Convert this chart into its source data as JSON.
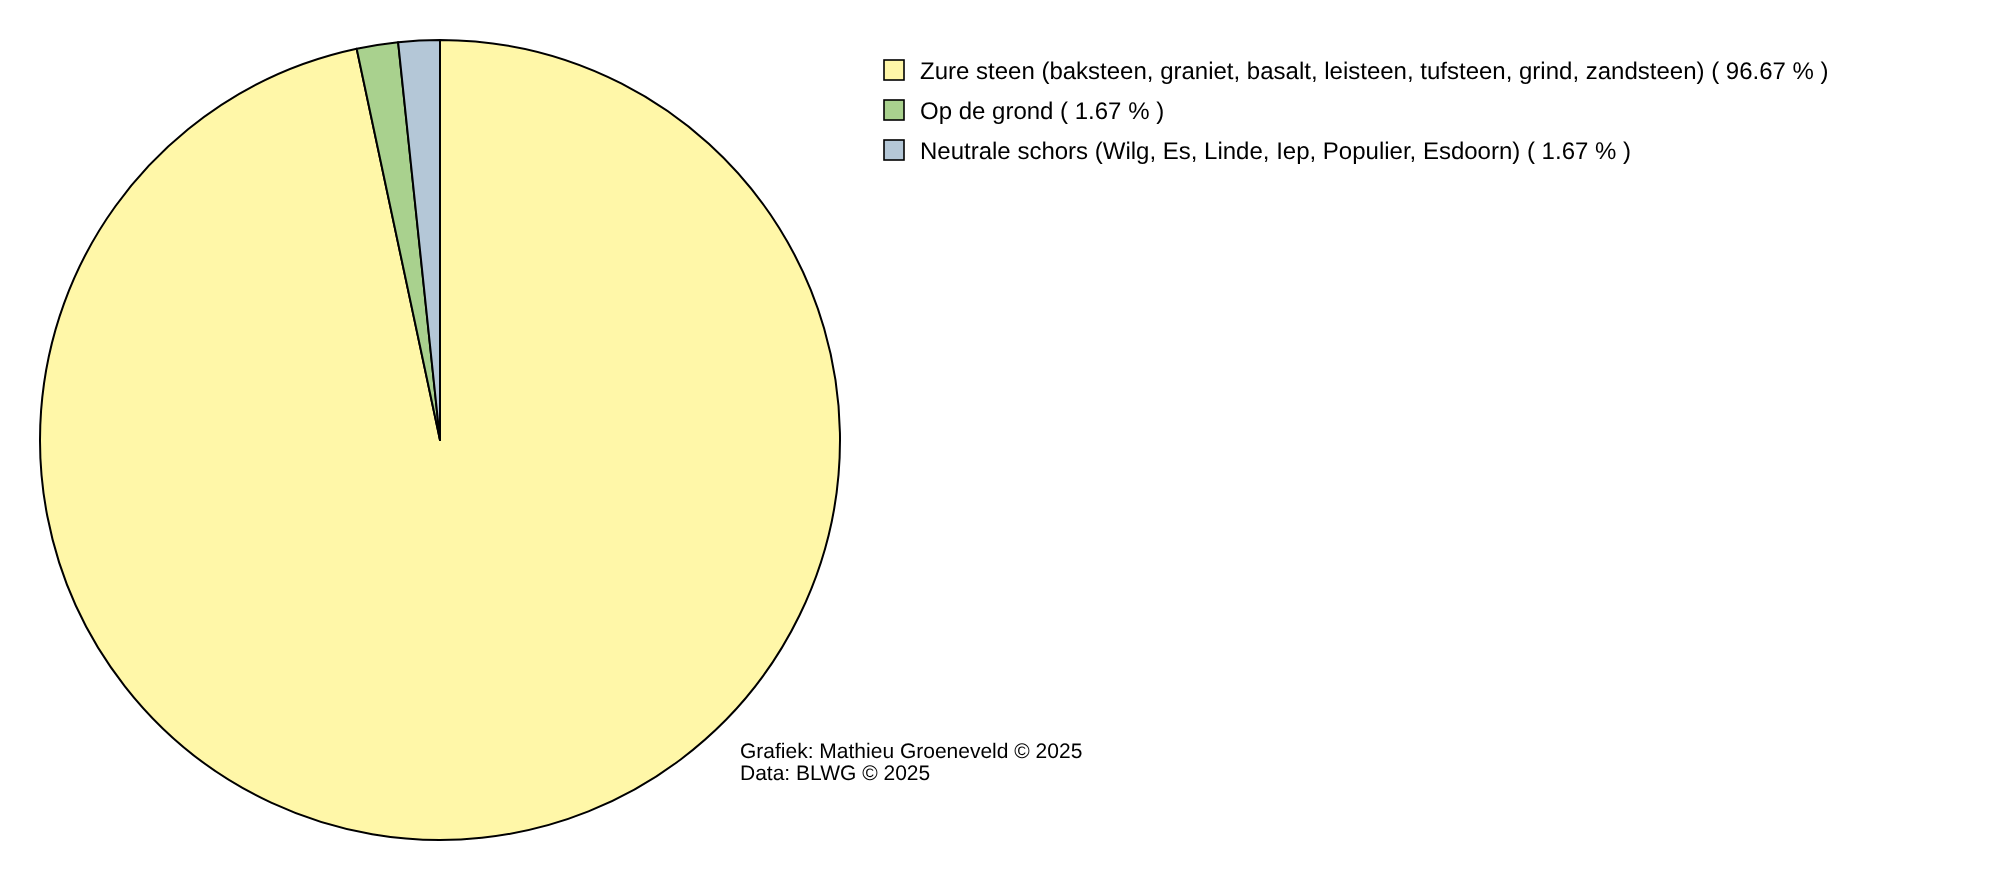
{
  "chart_data": {
    "type": "pie",
    "categories": [
      "Zure steen (baksteen, graniet, basalt, leisteen, tufsteen, grind, zandsteen) ( 96.67 % )",
      "Op de grond ( 1.67 % )",
      "Neutrale schors (Wilg, Es, Linde, Iep, Populier, Esdoorn) ( 1.67 % )"
    ],
    "values": [
      96.67,
      1.67,
      1.67
    ],
    "colors": [
      "#fff7a8",
      "#a9d18e",
      "#b4c7d7"
    ],
    "legend": "top right",
    "annotations": [
      "Grafiek: Mathieu Groeneveld © 2025",
      "Data: BLWG © 2025"
    ]
  }
}
